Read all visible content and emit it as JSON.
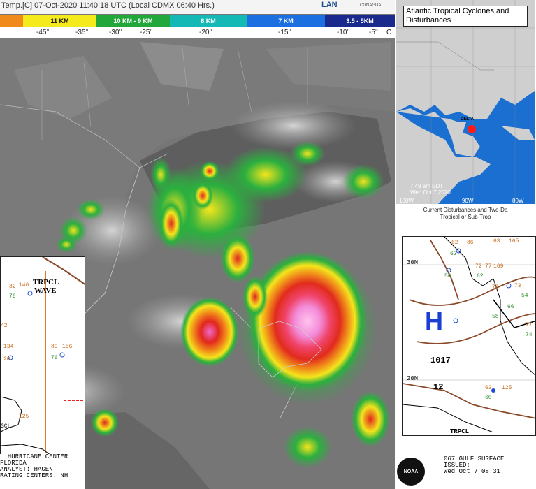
{
  "header": {
    "title": "Temp.[C] 07-Oct-2020 11:40:18 UTC (Local CDMX  06:40 Hrs.)",
    "logo_lan": "LAN",
    "logo_conagua": "CONAGUA"
  },
  "color_bar": [
    {
      "label": "11 KM",
      "color": "#f5ea1c",
      "text_color": "#111111"
    },
    {
      "label": "10 KM - 9 KM",
      "color": "#22a83a",
      "text_color": "#ffffff"
    },
    {
      "label": "8 KM",
      "color": "#14b8b4",
      "text_color": "#ffffff"
    },
    {
      "label": "7 KM",
      "color": "#1c6fe0",
      "text_color": "#ffffff"
    },
    {
      "label": "3.5 - 5KM",
      "color": "#1a2a8c",
      "text_color": "#ffffff"
    }
  ],
  "scale_labels": [
    "-45°",
    "-35°",
    "-30°",
    "-25°",
    "-20°",
    "-15°",
    "-10°",
    "-5°",
    "C"
  ],
  "left_inset": {
    "wave_label_1": "TRPCL",
    "wave_label_2": "WAVE",
    "numbers": [
      "82",
      "146",
      "76",
      "42",
      "83",
      "156",
      "76",
      "134",
      "20",
      "125",
      "SCL"
    ],
    "footer": [
      "L HURRICANE CENTER",
      " FLORIDA",
      " ANALYST: HAGEN",
      "RATING CENTERS: NH"
    ]
  },
  "right_top": {
    "title": "Atlantic Tropical Cyclones and Disturbances",
    "storm_label": "DELTA",
    "timestamp_1": "7:49 am EDT",
    "timestamp_2": "Wed Oct 7 2020",
    "lon_labels": [
      "100W",
      "90W",
      "80W"
    ],
    "caption_1": "Current Disturbances and Two-Da",
    "caption_2": "Tropical or Sub-Trop"
  },
  "right_bottom": {
    "lat_30": "30N",
    "lat_20": "20N",
    "high": "H",
    "pressure_1": "1017",
    "pressure_2": "12",
    "trpcl": "TRPCL",
    "numbers": [
      "62",
      "86",
      "63",
      "165",
      "62",
      "72",
      "56",
      "62",
      "77",
      "169",
      "79",
      "73",
      "54",
      "58",
      "66",
      "77",
      "74",
      "63",
      "60",
      "125"
    ],
    "footer": [
      "067 GULF SURFACE",
      "ISSUED:",
      " Wed Oct 7 08:31"
    ],
    "noaa": "NOAA"
  }
}
